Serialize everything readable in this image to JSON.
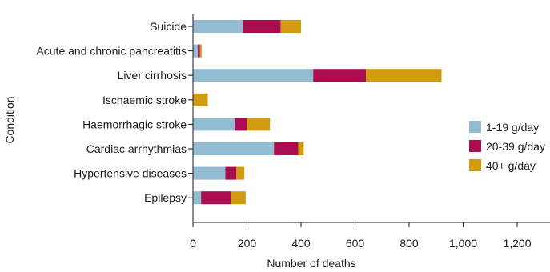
{
  "chart_data": {
    "type": "bar",
    "orientation": "horizontal",
    "stacked": true,
    "title": "",
    "xlabel": "Number of deaths",
    "ylabel": "Condition",
    "xlim": [
      0,
      1500
    ],
    "xticks": [
      0,
      200,
      400,
      600,
      800,
      1000,
      1200
    ],
    "xtick_labels": [
      "0",
      "200",
      "400",
      "600",
      "800",
      "1,000",
      "1,200"
    ],
    "grid": false,
    "legend_position": "right",
    "categories": [
      "Suicide",
      "Acute and chronic pancreatitis",
      "Liver cirrhosis",
      "Ischaemic stroke",
      "Haemorrhagic stroke",
      "Cardiac arrhythmias",
      "Hypertensive diseases",
      "Epilepsy"
    ],
    "series": [
      {
        "name": "1-19 g/day",
        "color": "#92bcd2",
        "values": [
          185,
          18,
          445,
          0,
          155,
          300,
          120,
          30
        ]
      },
      {
        "name": "20-39 g/day",
        "color": "#a80d4f",
        "values": [
          140,
          8,
          195,
          0,
          45,
          90,
          40,
          110
        ]
      },
      {
        "name": "40+ g/day",
        "color": "#d19b0f",
        "values": [
          75,
          6,
          280,
          55,
          85,
          20,
          30,
          55
        ]
      }
    ]
  }
}
